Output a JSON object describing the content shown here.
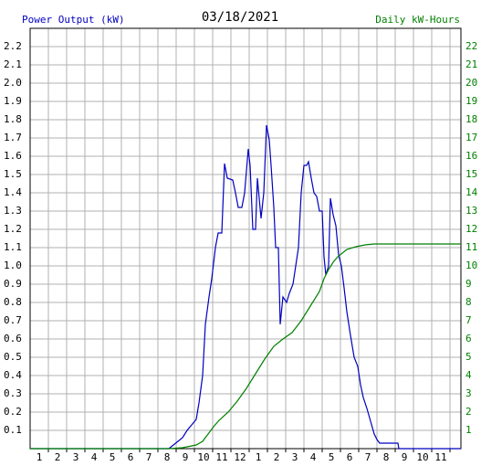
{
  "chart_data": {
    "type": "line",
    "title": "03/18/2021",
    "y_label": "Power Output (kW)",
    "y2_label": "Daily kW-Hours",
    "xlim": [
      0.5,
      24.1
    ],
    "ylim": [
      0,
      2.3
    ],
    "y2lim": [
      0,
      23
    ],
    "grid": true,
    "xticks": [
      {
        "value": 1,
        "label": "1"
      },
      {
        "value": 2,
        "label": "2"
      },
      {
        "value": 3,
        "label": "3"
      },
      {
        "value": 4,
        "label": "4"
      },
      {
        "value": 5,
        "label": "5"
      },
      {
        "value": 6,
        "label": "6"
      },
      {
        "value": 7,
        "label": "7"
      },
      {
        "value": 8,
        "label": "8"
      },
      {
        "value": 9,
        "label": "9"
      },
      {
        "value": 10,
        "label": "10"
      },
      {
        "value": 11,
        "label": "11"
      },
      {
        "value": 12,
        "label": "12"
      },
      {
        "value": 13,
        "label": "1"
      },
      {
        "value": 14,
        "label": "2"
      },
      {
        "value": 15,
        "label": "3"
      },
      {
        "value": 16,
        "label": "4"
      },
      {
        "value": 17,
        "label": "5"
      },
      {
        "value": 18,
        "label": "6"
      },
      {
        "value": 19,
        "label": "7"
      },
      {
        "value": 20,
        "label": "8"
      },
      {
        "value": 21,
        "label": "9"
      },
      {
        "value": 22,
        "label": "10"
      },
      {
        "value": 23,
        "label": "11"
      }
    ],
    "yticks": [
      0.1,
      0.2,
      0.3,
      0.4,
      0.5,
      0.6,
      0.7,
      0.8,
      0.9,
      {
        "value": 1,
        "label": "1.0"
      },
      1.1,
      1.2,
      1.3,
      1.4,
      1.5,
      1.6,
      1.7,
      1.8,
      1.9,
      {
        "value": 2,
        "label": "2.0"
      },
      2.1,
      2.2
    ],
    "y2ticks": [
      1,
      2,
      3,
      4,
      5,
      6,
      7,
      8,
      9,
      10,
      11,
      12,
      13,
      14,
      15,
      16,
      17,
      18,
      19,
      20,
      21,
      22
    ],
    "series": [
      {
        "name": "Power Output (kW)",
        "color": "#0000c0",
        "x": [
          0.5,
          8.1,
          8.35,
          8.6,
          8.85,
          9.1,
          9.35,
          9.6,
          9.75,
          9.95,
          10.1,
          10.3,
          10.45,
          10.65,
          10.8,
          11.0,
          11.15,
          11.3,
          11.6,
          11.75,
          11.9,
          12.1,
          12.25,
          12.45,
          12.55,
          12.7,
          12.85,
          12.95,
          13.15,
          13.3,
          13.45,
          13.6,
          13.7,
          13.85,
          13.95,
          14.1,
          14.2,
          14.35,
          14.55,
          14.7,
          14.9,
          15.05,
          15.2,
          15.35,
          15.5,
          15.65,
          15.75,
          15.9,
          16.05,
          16.2,
          16.35,
          16.5,
          16.6,
          16.7,
          16.85,
          16.95,
          17.1,
          17.25,
          17.4,
          17.55,
          17.7,
          17.85,
          18.05,
          18.25,
          18.45,
          18.6,
          18.75,
          18.95,
          19.15,
          19.35,
          19.5,
          19.65,
          19.85,
          20.65,
          20.7,
          24.1
        ],
        "values": [
          0,
          0,
          0.02,
          0.04,
          0.06,
          0.1,
          0.13,
          0.16,
          0.25,
          0.4,
          0.68,
          0.83,
          0.93,
          1.1,
          1.18,
          1.18,
          1.56,
          1.48,
          1.47,
          1.4,
          1.32,
          1.32,
          1.4,
          1.64,
          1.55,
          1.2,
          1.2,
          1.48,
          1.26,
          1.4,
          1.77,
          1.69,
          1.55,
          1.32,
          1.1,
          1.1,
          0.68,
          0.83,
          0.8,
          0.85,
          0.9,
          1.0,
          1.1,
          1.4,
          1.55,
          1.55,
          1.57,
          1.48,
          1.4,
          1.38,
          1.3,
          1.3,
          1.05,
          0.95,
          1.0,
          1.37,
          1.28,
          1.22,
          1.06,
          1.0,
          0.88,
          0.75,
          0.62,
          0.5,
          0.45,
          0.35,
          0.28,
          0.22,
          0.15,
          0.08,
          0.05,
          0.03,
          0.03,
          0.03,
          0,
          0
        ]
      },
      {
        "name": "Daily kW-Hours",
        "color": "#008000",
        "axis": "y2",
        "x": [
          0.5,
          8.1,
          8.85,
          9.6,
          9.95,
          10.25,
          10.55,
          10.85,
          11.35,
          11.85,
          12.35,
          12.85,
          13.35,
          13.85,
          14.35,
          14.85,
          15.35,
          15.85,
          16.35,
          16.6,
          16.85,
          17.1,
          17.35,
          17.85,
          18.35,
          18.85,
          19.35,
          24.1
        ],
        "values": [
          0,
          0,
          0.05,
          0.2,
          0.4,
          0.8,
          1.2,
          1.55,
          2.0,
          2.6,
          3.3,
          4.1,
          4.9,
          5.6,
          6.0,
          6.35,
          7.0,
          7.8,
          8.6,
          9.3,
          9.8,
          10.2,
          10.5,
          10.9,
          11.05,
          11.15,
          11.2,
          11.2
        ]
      }
    ]
  }
}
